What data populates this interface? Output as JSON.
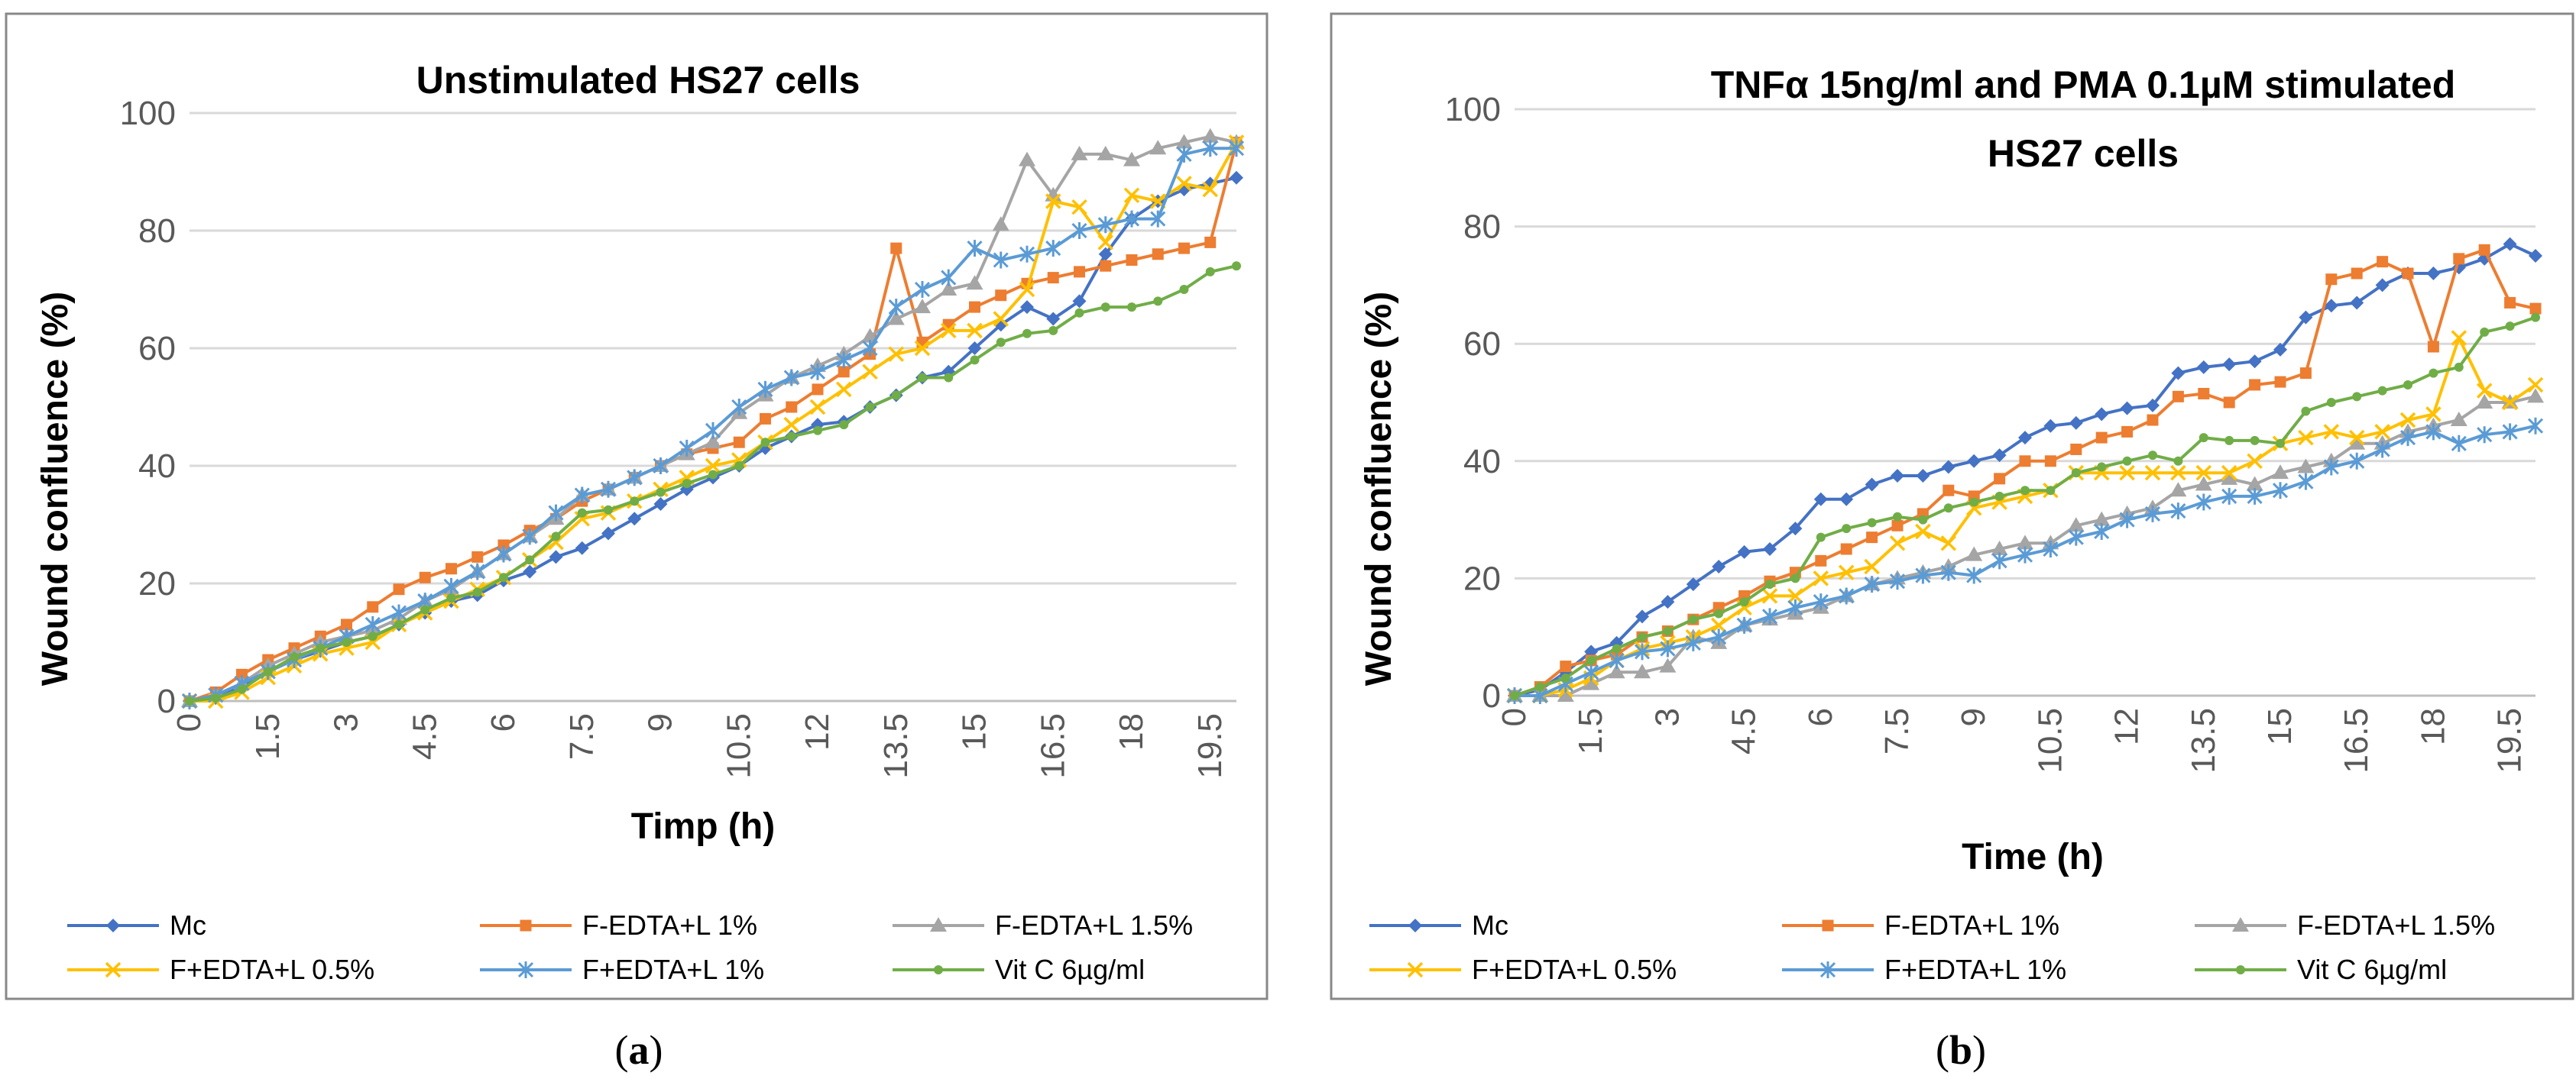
{
  "chart_data": [
    {
      "panel": "a",
      "type": "line",
      "title": "Unstimulated HS27 cells",
      "xlabel": "Timp (h)",
      "ylabel": "Wound confluence (%)",
      "ylim": [
        0,
        100
      ],
      "yticks": [
        0,
        20,
        40,
        60,
        80,
        100
      ],
      "xlim": [
        0,
        20
      ],
      "xticks": [
        0,
        1.5,
        3,
        4.5,
        6,
        7.5,
        9,
        10.5,
        12,
        13.5,
        15,
        16.5,
        18,
        19.5
      ],
      "x": [
        0,
        0.5,
        1,
        1.5,
        2,
        2.5,
        3,
        3.5,
        4,
        4.5,
        5,
        5.5,
        6,
        6.5,
        7,
        7.5,
        8,
        8.5,
        9,
        9.5,
        10,
        10.5,
        11,
        11.5,
        12,
        12.5,
        13,
        13.5,
        14,
        14.5,
        15,
        15.5,
        16,
        16.5,
        17,
        17.5,
        18,
        18.5,
        19,
        19.5,
        20
      ],
      "legend_position": "bottom",
      "series": [
        {
          "name": "Mc",
          "color": "#4472c4",
          "marker": "diamond",
          "values": [
            0,
            0.5,
            2.5,
            5,
            7,
            8.5,
            10,
            11,
            13,
            15,
            17,
            18,
            20.5,
            22,
            24.5,
            26,
            28.5,
            31,
            33.5,
            36,
            38,
            40,
            43,
            45,
            47,
            47.5,
            50,
            52,
            55,
            56,
            60,
            64,
            67,
            65,
            68,
            76,
            82,
            85,
            87,
            88,
            89
          ]
        },
        {
          "name": "F-EDTA+L 1%",
          "color": "#ed7d31",
          "marker": "square",
          "values": [
            0,
            1.5,
            4.5,
            7,
            9,
            11,
            13,
            16,
            19,
            21,
            22.5,
            24.5,
            26.5,
            29,
            31,
            34,
            36,
            38,
            40,
            42,
            43,
            44,
            48,
            50,
            53,
            56,
            59,
            77,
            61,
            64,
            67,
            69,
            71,
            72,
            73,
            74,
            75,
            76,
            77,
            78,
            95
          ]
        },
        {
          "name": "F-EDTA+L 1.5%",
          "color": "#a5a5a5",
          "marker": "triangle",
          "values": [
            0,
            1,
            3,
            6,
            8,
            10,
            11,
            12,
            14,
            17,
            19,
            22,
            25,
            28,
            31,
            35,
            36,
            38,
            40,
            42,
            44,
            49,
            52,
            55,
            57,
            59,
            62,
            65,
            67,
            70,
            71,
            81,
            92,
            86,
            93,
            93,
            92,
            94,
            95,
            96,
            95
          ]
        },
        {
          "name": "F+EDTA+L 0.5%",
          "color": "#ffc000",
          "marker": "x",
          "values": [
            0,
            0,
            1.5,
            4,
            6,
            8,
            9,
            10,
            13,
            15,
            17,
            19,
            21,
            24,
            27,
            31,
            32,
            34,
            36,
            38,
            40,
            41,
            44,
            47,
            50,
            53,
            56,
            59,
            60,
            63,
            63,
            65,
            70,
            85,
            84,
            78,
            86,
            85,
            88,
            87,
            95
          ]
        },
        {
          "name": "F+EDTA+L 1%",
          "color": "#5b9bd5",
          "marker": "star",
          "values": [
            0,
            1,
            3,
            5,
            7,
            9,
            11,
            13,
            15,
            17,
            19.5,
            22,
            25,
            28,
            32,
            35,
            36,
            38,
            40,
            43,
            46,
            50,
            53,
            55,
            56,
            58,
            60,
            67,
            70,
            72,
            77,
            75,
            76,
            77,
            80,
            81,
            82,
            82,
            93,
            94,
            94
          ]
        },
        {
          "name": "Vit C 6µg/ml",
          "color": "#70ad47",
          "marker": "circle",
          "values": [
            0,
            0.5,
            2,
            5,
            7.5,
            9,
            10,
            11,
            13,
            15.5,
            17.5,
            18.5,
            21,
            24,
            28,
            32,
            32.5,
            34,
            35.5,
            37,
            38.5,
            40,
            44,
            45,
            46,
            47,
            50,
            52,
            55,
            55,
            58,
            61,
            62.5,
            63,
            66,
            67,
            67,
            68,
            70,
            73,
            74
          ]
        }
      ]
    },
    {
      "panel": "b",
      "type": "line",
      "title": "TNFα 15ng/ml and PMA 0.1µM stimulated",
      "title_line2": "HS27 cells",
      "xlabel": "Time (h)",
      "ylabel": "Wound confluence (%)",
      "ylim": [
        0,
        100
      ],
      "yticks": [
        0,
        20,
        40,
        60,
        80,
        100
      ],
      "xlim": [
        0,
        20
      ],
      "xticks": [
        0,
        1.5,
        3,
        4.5,
        6,
        7.5,
        9,
        10.5,
        12,
        13.5,
        15,
        16.5,
        18,
        19.5
      ],
      "x": [
        0,
        0.5,
        1,
        1.5,
        2,
        2.5,
        3,
        3.5,
        4,
        4.5,
        5,
        5.5,
        6,
        6.5,
        7,
        7.5,
        8,
        8.5,
        9,
        9.5,
        10,
        10.5,
        11,
        11.5,
        12,
        12.5,
        13,
        13.5,
        14,
        14.5,
        15,
        15.5,
        16,
        16.5,
        17,
        17.5,
        18,
        18.5,
        19,
        19.5,
        20
      ],
      "legend_position": "bottom",
      "series": [
        {
          "name": "Mc",
          "color": "#4472c4",
          "marker": "diamond",
          "values": [
            0,
            1,
            4,
            7.5,
            9,
            13.5,
            16,
            19,
            22,
            24.5,
            25,
            28.5,
            33.5,
            33.5,
            36,
            37.5,
            37.5,
            39,
            40,
            41,
            44,
            46,
            46.5,
            48,
            49,
            49.5,
            55,
            56,
            56.5,
            57,
            59,
            64.5,
            66.5,
            67,
            70,
            72,
            72,
            73,
            74.5,
            77,
            75
          ]
        },
        {
          "name": "F-EDTA+L 1%",
          "color": "#ed7d31",
          "marker": "square",
          "values": [
            0,
            1.5,
            5,
            6,
            7,
            10,
            11,
            13,
            15,
            17,
            19.5,
            21,
            23,
            25,
            27,
            29,
            31,
            35,
            34,
            37,
            40,
            40,
            42,
            44,
            45,
            47,
            51,
            51.5,
            50,
            53,
            53.5,
            55,
            71,
            72,
            74,
            72,
            59.5,
            74.5,
            76,
            67,
            66
          ]
        },
        {
          "name": "F-EDTA+L 1.5%",
          "color": "#a5a5a5",
          "marker": "triangle",
          "values": [
            0,
            0,
            0,
            2,
            4,
            4,
            5,
            10,
            9,
            12,
            13,
            14,
            15,
            17,
            19,
            20,
            21,
            22,
            24,
            25,
            26,
            26,
            29,
            30,
            31,
            32,
            35,
            36,
            37,
            36,
            38,
            39,
            40,
            43,
            43,
            45,
            46,
            47,
            50,
            50,
            51
          ]
        },
        {
          "name": "F+EDTA+L 0.5%",
          "color": "#ffc000",
          "marker": "x",
          "values": [
            0,
            0,
            1,
            3,
            6,
            8,
            9,
            10,
            12,
            15,
            17,
            17,
            20,
            21,
            22,
            26,
            28,
            26,
            32,
            33,
            34,
            35,
            38,
            38,
            38,
            38,
            38,
            38,
            38,
            40,
            43,
            44,
            45,
            44,
            45,
            47,
            48,
            61,
            52,
            50,
            53
          ]
        },
        {
          "name": "F+EDTA+L 1%",
          "color": "#5b9bd5",
          "marker": "star",
          "values": [
            0,
            0,
            2,
            4,
            6,
            7.5,
            8,
            9,
            10,
            12,
            13.5,
            15,
            16,
            17,
            19,
            19.5,
            20.5,
            21,
            20.5,
            23,
            24,
            25,
            27,
            28,
            30,
            31,
            31.5,
            33,
            34,
            34,
            35,
            36.5,
            39,
            40,
            42,
            44,
            45,
            43,
            44.5,
            45,
            46
          ]
        },
        {
          "name": "Vit C 6µg/ml",
          "color": "#70ad47",
          "marker": "circle",
          "values": [
            0,
            1.5,
            3,
            6,
            8,
            10,
            11,
            13,
            14,
            16,
            19,
            20,
            27,
            28.5,
            29.5,
            30.5,
            30,
            32,
            33,
            34,
            35,
            35,
            38,
            39,
            40,
            41,
            40,
            44,
            43.5,
            43.5,
            43,
            48.5,
            50,
            51,
            52,
            53,
            55,
            56,
            62,
            63,
            64.5
          ]
        }
      ]
    }
  ],
  "captions": [
    {
      "open": "(",
      "letter": "a",
      "close": ")"
    },
    {
      "open": "(",
      "letter": "b",
      "close": ")"
    }
  ]
}
